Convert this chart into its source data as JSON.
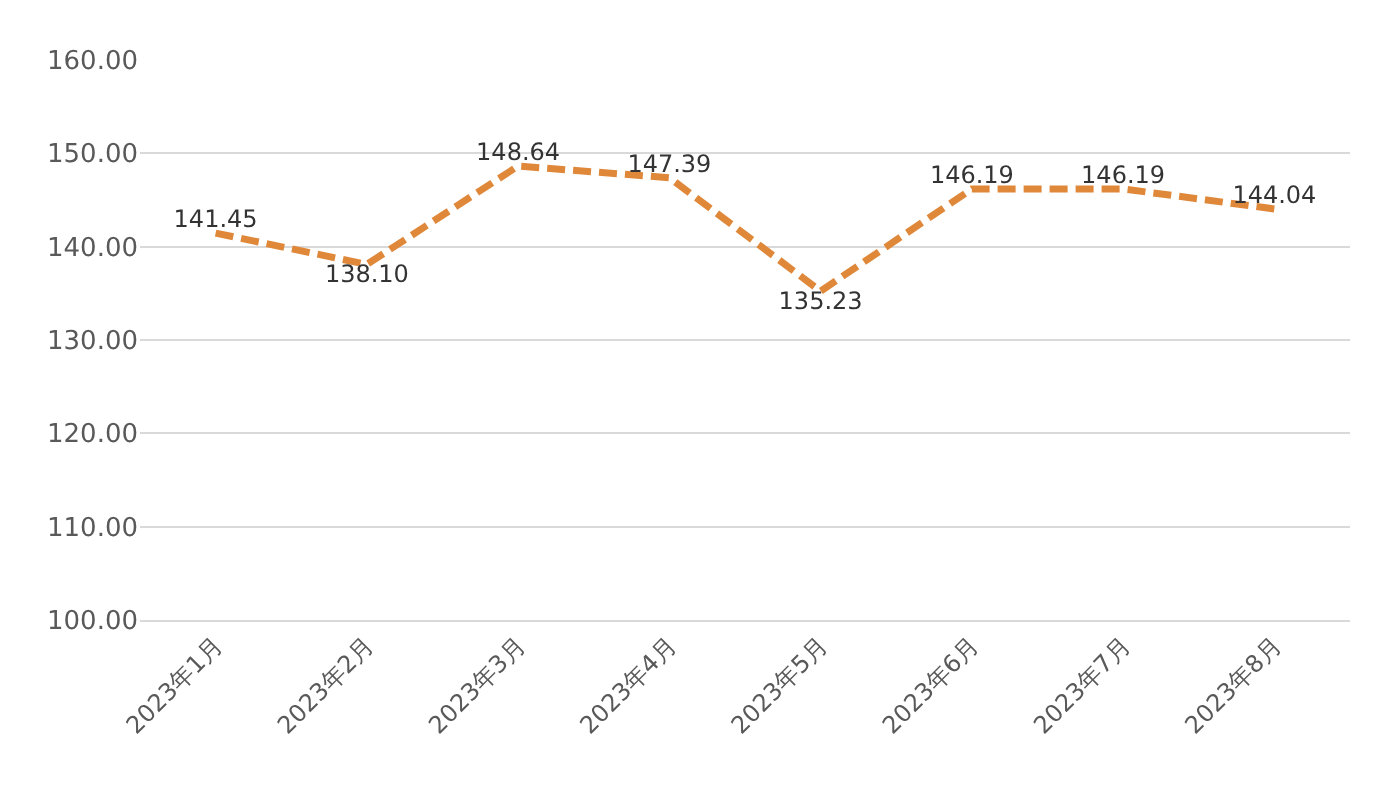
{
  "chart_data": {
    "type": "line",
    "categories": [
      "2023年1月",
      "2023年2月",
      "2023年3月",
      "2023年4月",
      "2023年5月",
      "2023年6月",
      "2023年7月",
      "2023年8月"
    ],
    "series": [
      {
        "color": "#e0883a",
        "values": [
          141.45,
          138.1,
          148.64,
          147.39,
          135.23,
          146.19,
          146.19,
          144.04
        ],
        "value_labels": [
          "141.45",
          "138.10",
          "148.64",
          "147.39",
          "135.23",
          "146.19",
          "146.19",
          "144.04"
        ]
      }
    ],
    "ylim": [
      100,
      160
    ],
    "yticks": [
      {
        "value": 100,
        "label": "100.00"
      },
      {
        "value": 110,
        "label": "110.00"
      },
      {
        "value": 120,
        "label": "120.00"
      },
      {
        "value": 130,
        "label": "130.00"
      },
      {
        "value": 140,
        "label": "140.00"
      },
      {
        "value": 150,
        "label": "150.00"
      },
      {
        "value": 160,
        "label": "160.00"
      }
    ],
    "grid": "y",
    "marker": "none",
    "line_style": "dashed"
  }
}
